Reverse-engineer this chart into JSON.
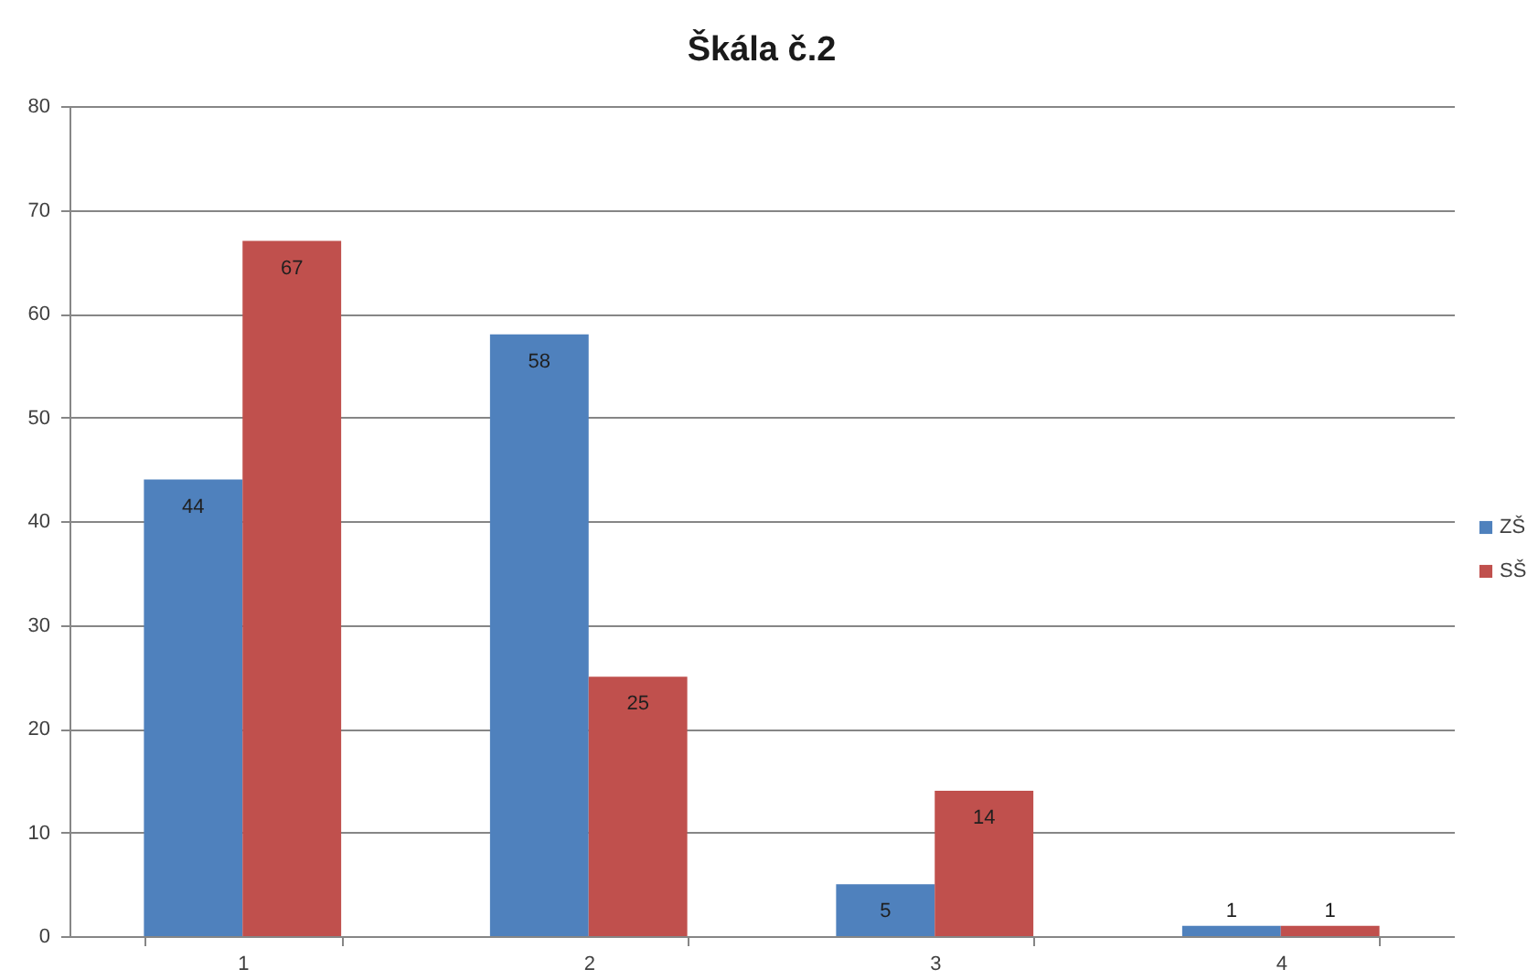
{
  "chart_data": {
    "type": "bar",
    "title": "Škála č.2",
    "categories": [
      "1",
      "2",
      "3",
      "4"
    ],
    "series": [
      {
        "name": "ZŠ",
        "color": "#4f81bd",
        "values": [
          44,
          58,
          5,
          1
        ]
      },
      {
        "name": "SŠ",
        "color": "#c0504d",
        "values": [
          67,
          25,
          14,
          1
        ]
      }
    ],
    "ylim": [
      0,
      80
    ],
    "yticks": [
      0,
      10,
      20,
      30,
      40,
      50,
      60,
      70,
      80
    ],
    "grid": "y",
    "legend": "right",
    "data_labels": true
  }
}
